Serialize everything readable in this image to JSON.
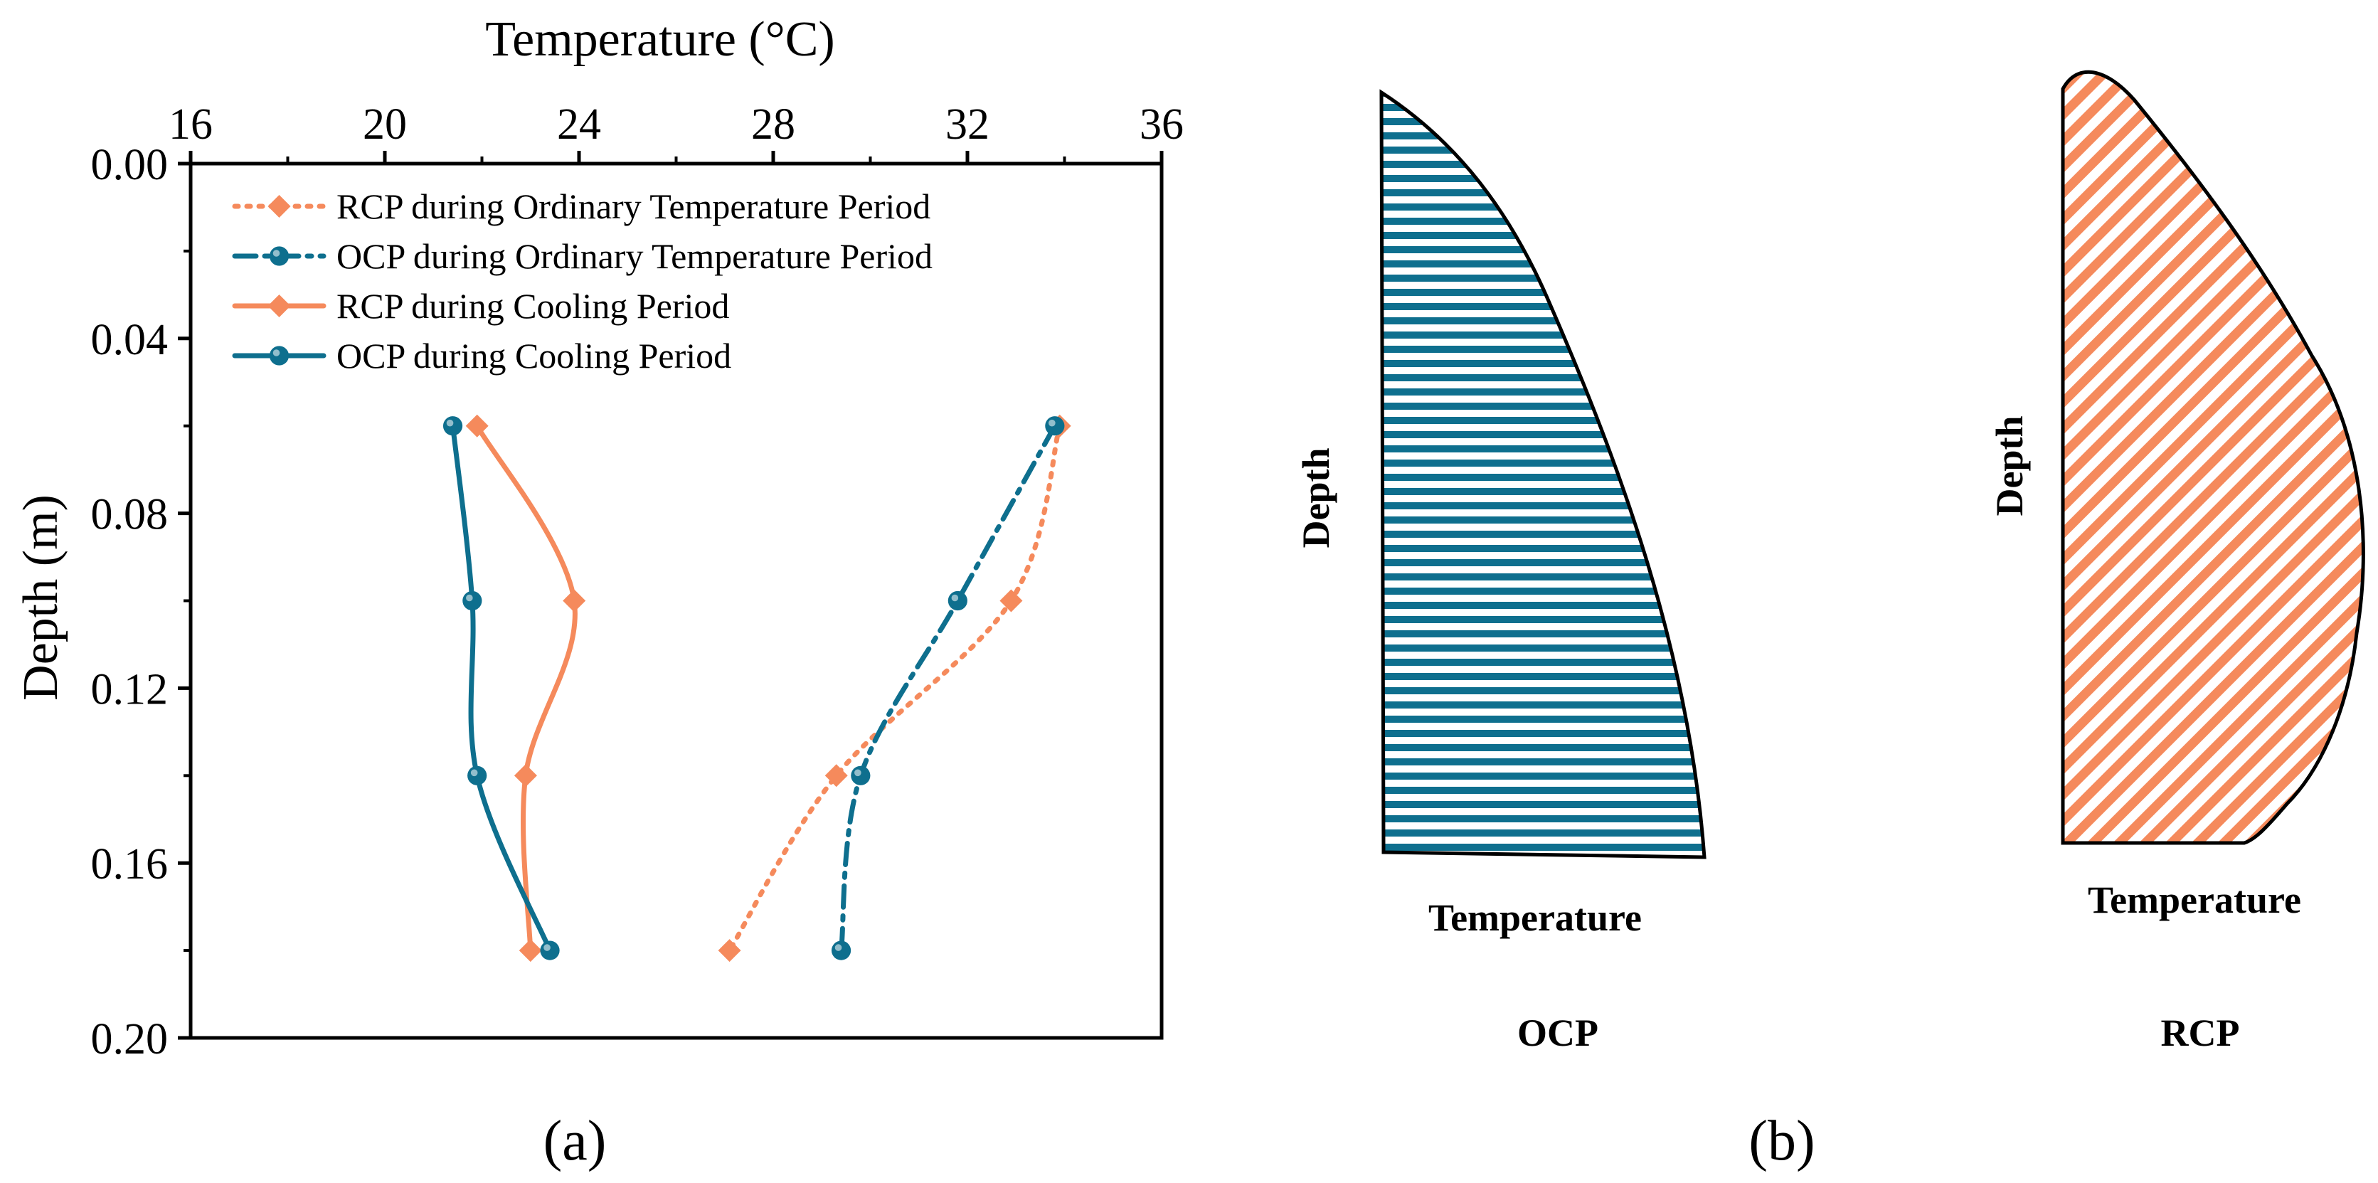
{
  "panel_a": {
    "label": "(a)",
    "x_axis_title": "Temperature (°C)",
    "y_axis_title": "Depth (m)"
  },
  "panel_b": {
    "label": "(b)",
    "ocp": {
      "y_label": "Depth",
      "x_label": "Temperature",
      "caption": "OCP"
    },
    "rcp": {
      "y_label": "Depth",
      "x_label": "Temperature",
      "caption": "RCP"
    }
  },
  "colors": {
    "rcp": "#F58A5C",
    "ocp": "#0E6F8E",
    "axis": "#000000"
  },
  "chart_data": {
    "type": "line",
    "title": "",
    "xlabel": "Temperature (°C)",
    "ylabel": "Depth (m)",
    "xlim": [
      16,
      36
    ],
    "ylim": [
      0.0,
      0.2
    ],
    "y_inverted": true,
    "x_axis_position": "top",
    "x_ticks": [
      16,
      20,
      24,
      28,
      32,
      36
    ],
    "x_tick_labels": [
      "16",
      "20",
      "24",
      "28",
      "32",
      "36"
    ],
    "y_ticks": [
      0.0,
      0.04,
      0.08,
      0.12,
      0.16,
      0.2
    ],
    "y_tick_labels": [
      "0.00",
      "0.04",
      "0.08",
      "0.12",
      "0.16",
      "0.20"
    ],
    "legend_position": "top-left",
    "series": [
      {
        "name": "RCP during Ordinary Temperature Period",
        "style": "dotted",
        "marker": "diamond",
        "color": "#F58A5C",
        "points": [
          [
            33.9,
            0.06
          ],
          [
            32.9,
            0.1
          ],
          [
            29.3,
            0.14
          ],
          [
            27.1,
            0.18
          ]
        ]
      },
      {
        "name": "OCP during Ordinary Temperature Period",
        "style": "dashdot",
        "marker": "circle",
        "color": "#0E6F8E",
        "points": [
          [
            33.8,
            0.06
          ],
          [
            31.8,
            0.1
          ],
          [
            29.8,
            0.14
          ],
          [
            29.4,
            0.18
          ]
        ]
      },
      {
        "name": "RCP during  Cooling Period",
        "style": "solid",
        "marker": "diamond",
        "color": "#F58A5C",
        "points": [
          [
            21.9,
            0.06
          ],
          [
            23.9,
            0.1
          ],
          [
            22.9,
            0.14
          ],
          [
            23.0,
            0.18
          ]
        ]
      },
      {
        "name": "OCP during Cooling Period",
        "style": "solid",
        "marker": "circle",
        "color": "#0E6F8E",
        "points": [
          [
            21.4,
            0.06
          ],
          [
            21.8,
            0.1
          ],
          [
            21.9,
            0.14
          ],
          [
            23.4,
            0.18
          ]
        ]
      }
    ]
  }
}
